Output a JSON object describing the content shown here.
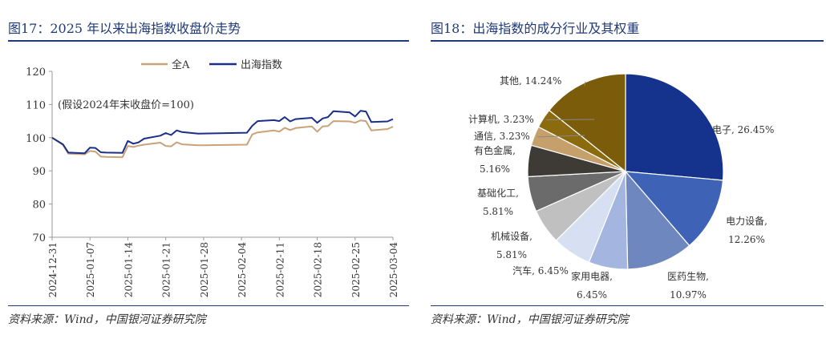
{
  "left": {
    "figure_title": "图17：2025 年以来出海指数收盘价走势",
    "source": "资料来源：Wind，中国银河证券研究院"
  },
  "right": {
    "figure_title": "图18：出海指数的成分行业及其权重",
    "source": "资料来源：Wind，中国银河证券研究院"
  },
  "colors": {
    "title_blue": "#1f3a7a",
    "series_all_a": "#c9a27a",
    "series_chuhai": "#1b2f8a"
  },
  "chart_data": [
    {
      "type": "line",
      "title": "",
      "annotation": "(假设2024年末收盘价=100)",
      "xlabel": "",
      "ylabel": "",
      "ylim": [
        70,
        120
      ],
      "yticks": [
        70,
        80,
        90,
        100,
        110,
        120
      ],
      "grid": false,
      "legend_position": "top",
      "x_tick_labels": [
        "2024-12-31",
        "2025-01-07",
        "2025-01-14",
        "2025-01-21",
        "2025-01-28",
        "2025-02-04",
        "2025-02-11",
        "2025-02-18",
        "2025-02-25",
        "2025-03-04"
      ],
      "x": [
        "2024-12-31",
        "2025-01-02",
        "2025-01-03",
        "2025-01-06",
        "2025-01-07",
        "2025-01-08",
        "2025-01-09",
        "2025-01-10",
        "2025-01-13",
        "2025-01-14",
        "2025-01-15",
        "2025-01-16",
        "2025-01-17",
        "2025-01-20",
        "2025-01-21",
        "2025-01-22",
        "2025-01-23",
        "2025-01-24",
        "2025-01-27",
        "2025-02-05",
        "2025-02-06",
        "2025-02-07",
        "2025-02-10",
        "2025-02-11",
        "2025-02-12",
        "2025-02-13",
        "2025-02-14",
        "2025-02-17",
        "2025-02-18",
        "2025-02-19",
        "2025-02-20",
        "2025-02-21",
        "2025-02-24",
        "2025-02-25",
        "2025-02-26",
        "2025-02-27",
        "2025-02-28",
        "2025-03-03",
        "2025-03-04"
      ],
      "series": [
        {
          "name": "全A",
          "color": "#c9a27a",
          "values": [
            100,
            97.8,
            95.2,
            95.0,
            96.0,
            95.8,
            94.3,
            94.2,
            94.1,
            97.5,
            97.2,
            97.6,
            97.9,
            98.5,
            97.5,
            97.4,
            98.6,
            98.0,
            97.7,
            97.9,
            101.0,
            101.6,
            102.2,
            101.8,
            103.0,
            102.3,
            102.9,
            103.4,
            101.8,
            103.4,
            103.5,
            105.0,
            104.9,
            104.5,
            105.2,
            105.0,
            102.2,
            102.6,
            103.3
          ]
        },
        {
          "name": "出海指数",
          "color": "#1b2f8a",
          "values": [
            100,
            98.0,
            95.5,
            95.3,
            97.0,
            96.9,
            95.6,
            95.5,
            95.4,
            99.0,
            98.2,
            98.6,
            99.7,
            100.6,
            101.4,
            100.8,
            102.2,
            101.7,
            101.2,
            101.5,
            103.6,
            105.0,
            105.3,
            105.0,
            106.2,
            104.9,
            105.6,
            106.0,
            104.5,
            105.8,
            106.2,
            108.0,
            107.6,
            106.4,
            108.1,
            107.9,
            104.7,
            104.9,
            105.6
          ]
        }
      ]
    },
    {
      "type": "pie",
      "title": "",
      "slices": [
        {
          "label": "电子",
          "value": 26.45,
          "display": "电子, 26.45%",
          "color": "#15338c"
        },
        {
          "label": "电力设备",
          "value": 12.26,
          "display_line1": "电力设备,",
          "display_line2": "12.26%",
          "color": "#3e62b5"
        },
        {
          "label": "医药生物",
          "value": 10.97,
          "display_line1": "医药生物,",
          "display_line2": "10.97%",
          "color": "#6e87bf"
        },
        {
          "label": "家用电器",
          "value": 6.45,
          "display_line1": "家用电器,",
          "display_line2": "6.45%",
          "color": "#a4b6e0"
        },
        {
          "label": "汽车",
          "value": 6.45,
          "display": "汽车, 6.45%",
          "color": "#d6e0f2"
        },
        {
          "label": "机械设备",
          "value": 5.81,
          "display_line1": "机械设备,",
          "display_line2": "5.81%",
          "color": "#c0c0c0"
        },
        {
          "label": "基础化工",
          "value": 5.81,
          "display_line1": "基础化工,",
          "display_line2": "5.81%",
          "color": "#6b6b6b"
        },
        {
          "label": "有色金属",
          "value": 5.16,
          "display_line1": "有色金属,",
          "display_line2": "5.16%",
          "color": "#3e3a36"
        },
        {
          "label": "通信",
          "value": 3.23,
          "display": "通信, 3.23%",
          "color": "#c6a06a"
        },
        {
          "label": "计算机",
          "value": 3.23,
          "display": "计算机, 3.23%",
          "color": "#8c6a0e"
        },
        {
          "label": "其他",
          "value": 14.24,
          "display": "其他, 14.24%",
          "color": "#7a5c0a"
        }
      ]
    }
  ]
}
